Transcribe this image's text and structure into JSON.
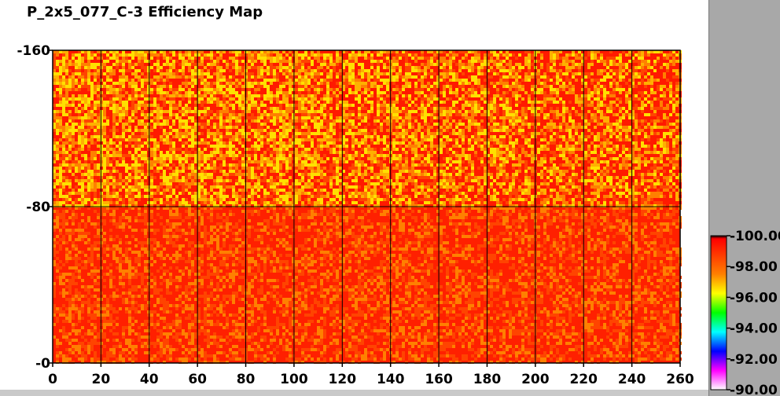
{
  "window": {
    "title": "P_2x5_077_C-3 Efficiency Map"
  },
  "colors": {
    "background": "#ffffff",
    "panel": "#a8a8a8",
    "grid": "#000000",
    "heat_low": "#ff0000",
    "heat_mid": "#ff8c00",
    "heat_high": "#ffff00"
  },
  "chart_data": {
    "type": "heatmap",
    "title": "P_2x5_077_C-3 Efficiency Map",
    "xlabel": "",
    "ylabel": "",
    "xlim": [
      0,
      260
    ],
    "ylim": [
      0,
      160
    ],
    "x_ticks": [
      "0",
      "20",
      "40",
      "60",
      "80",
      "100",
      "120",
      "140",
      "160",
      "180",
      "200",
      "220",
      "240",
      "260"
    ],
    "y_ticks": [
      "0",
      "80",
      "160"
    ],
    "x_tick_values": [
      0,
      20,
      40,
      60,
      80,
      100,
      120,
      140,
      160,
      180,
      200,
      220,
      240,
      260
    ],
    "y_tick_values": [
      0,
      80,
      160
    ],
    "grid": true,
    "grid_x_lines": [
      20,
      40,
      60,
      80,
      100,
      120,
      140,
      160,
      180,
      200,
      220,
      240
    ],
    "grid_y_lines": [
      80
    ],
    "regions": [
      {
        "y_range": [
          0,
          80
        ],
        "typical_efficiency": 99.6
      },
      {
        "y_range": [
          80,
          160
        ],
        "typical_efficiency": 98.9
      }
    ],
    "colorbar": {
      "min": 90.0,
      "max": 100.0,
      "labels": [
        "100.00",
        "98.00",
        "96.00",
        "94.00",
        "92.00",
        "90.00"
      ],
      "label_values": [
        100,
        98,
        96,
        94,
        92,
        90
      ],
      "gradient_colors": [
        "#000000",
        "#ff0000",
        "#ff8000",
        "#ffff00",
        "#00ff00",
        "#00ffff",
        "#0000ff",
        "#ff00ff",
        "#ffffff"
      ],
      "placement": "right"
    }
  }
}
